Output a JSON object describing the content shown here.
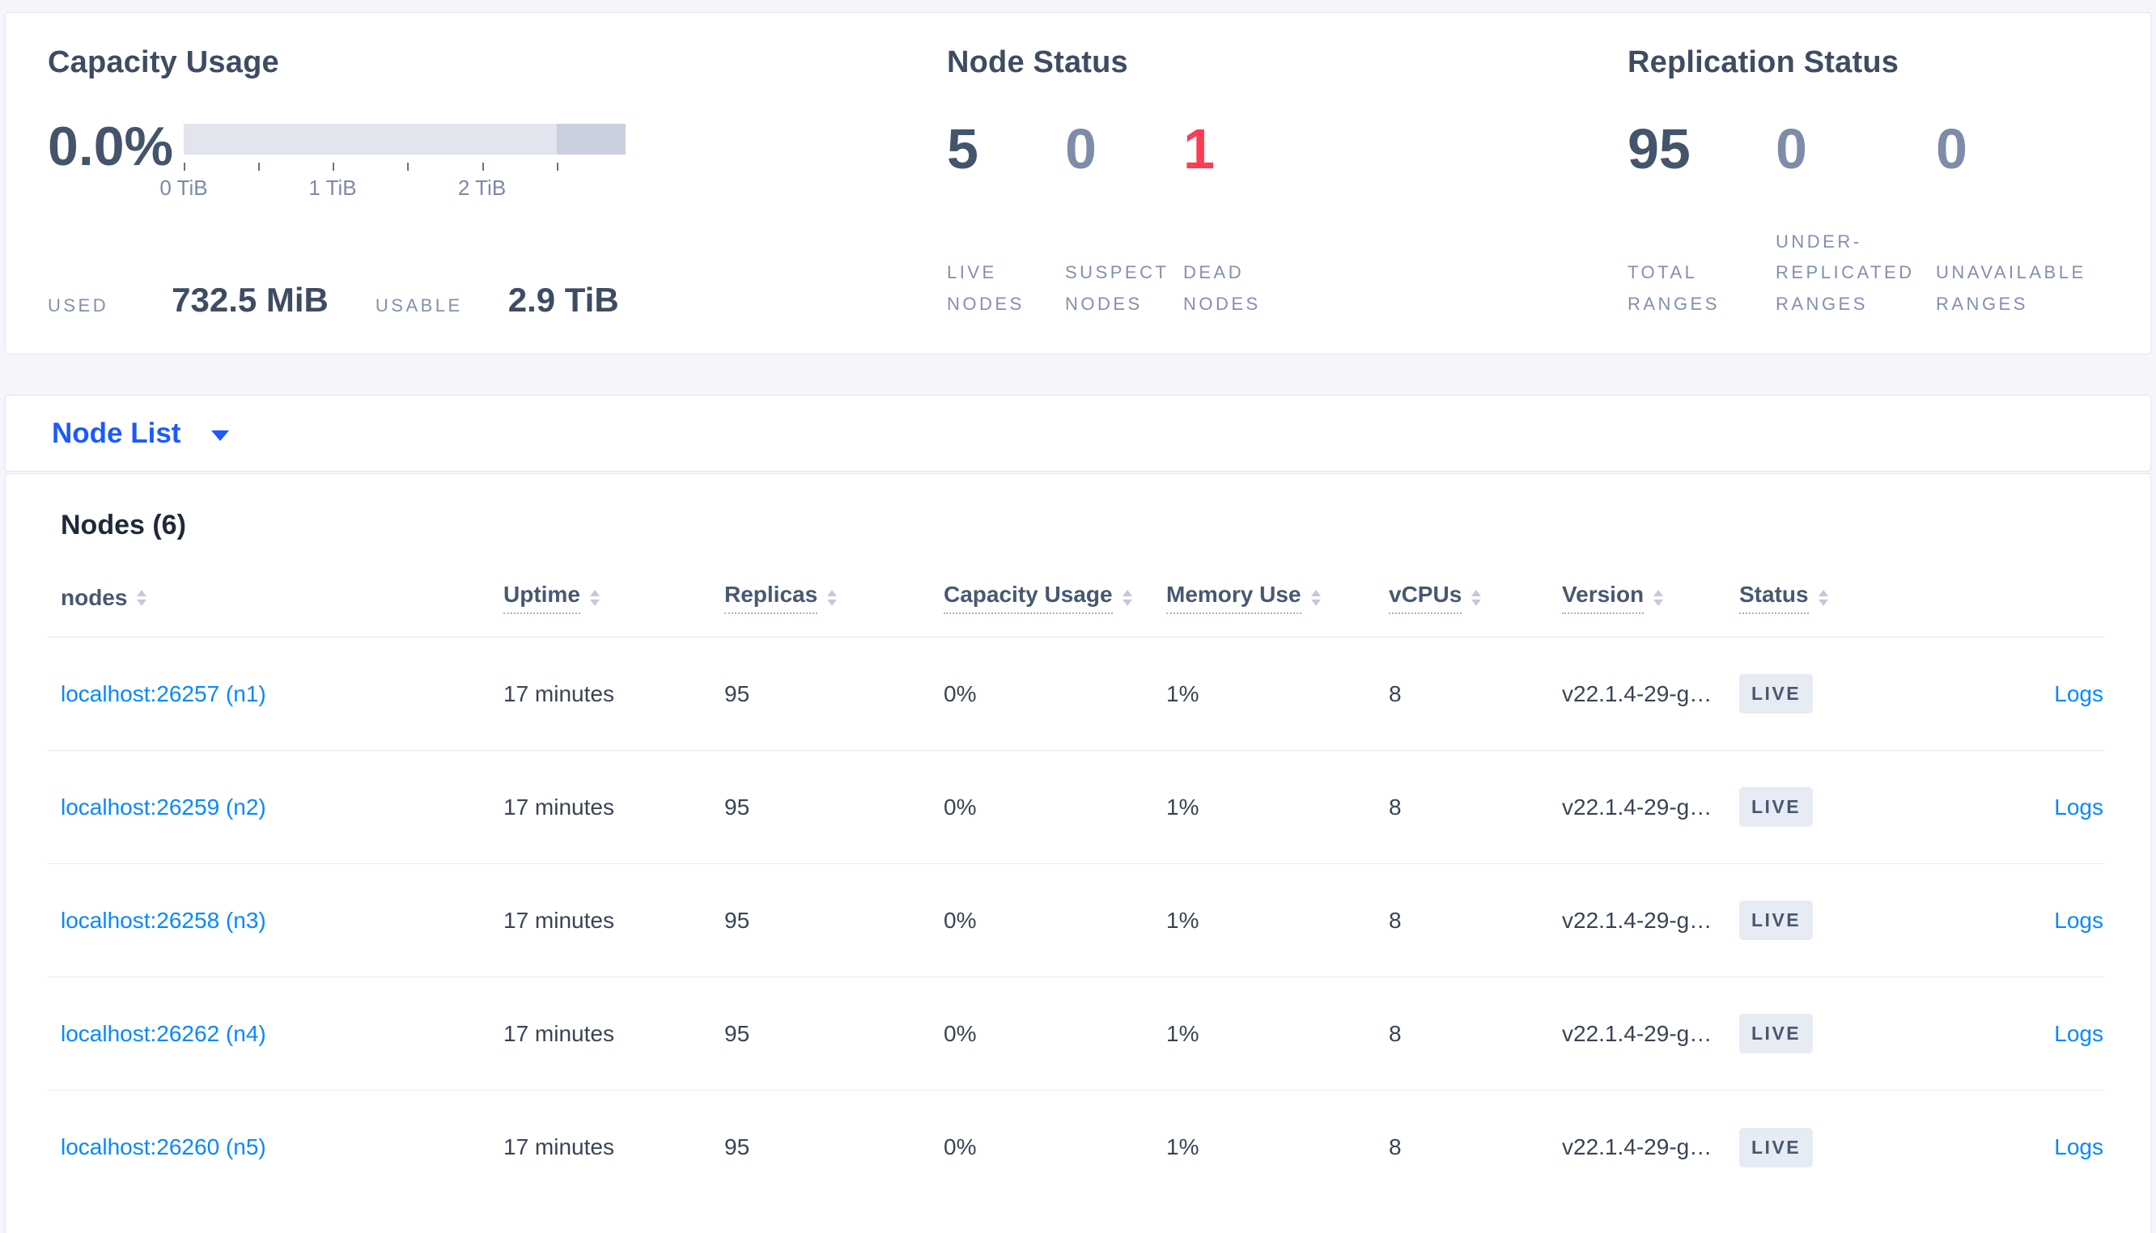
{
  "overview": {
    "capacity": {
      "title": "Capacity Usage",
      "percent": "0.0%",
      "bar": {
        "track_color": "#e2e5ee",
        "segment_color": "#c9cfdd",
        "segment_percent": 15.6,
        "ticks": [
          {
            "pos": 0,
            "label": "0 TiB"
          },
          {
            "pos": 16.9,
            "label": ""
          },
          {
            "pos": 33.7,
            "label": "1 TiB"
          },
          {
            "pos": 50.5,
            "label": ""
          },
          {
            "pos": 67.5,
            "label": "2 TiB"
          },
          {
            "pos": 84.4,
            "label": ""
          }
        ]
      },
      "used_label": "USED",
      "used_value": "732.5 MiB",
      "usable_label": "USABLE",
      "usable_value": "2.9 TiB"
    },
    "node_status": {
      "title": "Node Status",
      "stats": [
        {
          "value": "5",
          "label": "LIVE NODES",
          "color": "#44546d"
        },
        {
          "value": "0",
          "label": "SUSPECT NODES",
          "color": "#7e8ba9"
        },
        {
          "value": "1",
          "label": "DEAD NODES",
          "color": "#fc3d54"
        }
      ]
    },
    "replication_status": {
      "title": "Replication Status",
      "stats": [
        {
          "value": "95",
          "label": "TOTAL RANGES",
          "color": "#44546d"
        },
        {
          "value": "0",
          "label": "UNDER-REPLICATED RANGES",
          "color": "#7e8ba9"
        },
        {
          "value": "0",
          "label": "UNAVAILABLE RANGES",
          "color": "#7e8ba9"
        }
      ]
    }
  },
  "view_selector": {
    "label": "Node List"
  },
  "nodes_section": {
    "title": "Nodes (6)",
    "columns": [
      {
        "label": "nodes",
        "underlined": false
      },
      {
        "label": "Uptime",
        "underlined": true
      },
      {
        "label": "Replicas",
        "underlined": true
      },
      {
        "label": "Capacity Usage",
        "underlined": true
      },
      {
        "label": "Memory Use",
        "underlined": true
      },
      {
        "label": "vCPUs",
        "underlined": true
      },
      {
        "label": "Version",
        "underlined": true
      },
      {
        "label": "Status",
        "underlined": true
      }
    ],
    "rows": [
      {
        "address": "localhost:26257 (n1)",
        "uptime": "17 minutes",
        "replicas": "95",
        "capacity_usage": "0%",
        "memory_use": "1%",
        "vcpus": "8",
        "version": "v22.1.4-29-g…",
        "status": "LIVE",
        "logs": "Logs"
      },
      {
        "address": "localhost:26259 (n2)",
        "uptime": "17 minutes",
        "replicas": "95",
        "capacity_usage": "0%",
        "memory_use": "1%",
        "vcpus": "8",
        "version": "v22.1.4-29-g…",
        "status": "LIVE",
        "logs": "Logs"
      },
      {
        "address": "localhost:26258 (n3)",
        "uptime": "17 minutes",
        "replicas": "95",
        "capacity_usage": "0%",
        "memory_use": "1%",
        "vcpus": "8",
        "version": "v22.1.4-29-g…",
        "status": "LIVE",
        "logs": "Logs"
      },
      {
        "address": "localhost:26262 (n4)",
        "uptime": "17 minutes",
        "replicas": "95",
        "capacity_usage": "0%",
        "memory_use": "1%",
        "vcpus": "8",
        "version": "v22.1.4-29-g…",
        "status": "LIVE",
        "logs": "Logs"
      },
      {
        "address": "localhost:26260 (n5)",
        "uptime": "17 minutes",
        "replicas": "95",
        "capacity_usage": "0%",
        "memory_use": "1%",
        "vcpus": "8",
        "version": "v22.1.4-29-g…",
        "status": "LIVE",
        "logs": "Logs"
      }
    ]
  },
  "colors": {
    "link_blue": "#0788ff",
    "dropdown_blue": "#1b5aff",
    "dead_red": "#fc3d54",
    "badge_bg": "#e7ebf3",
    "page_bg": "#f4f6fb"
  }
}
